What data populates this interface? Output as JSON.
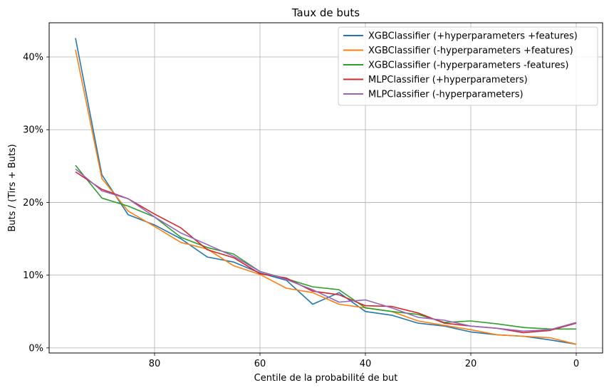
{
  "chart_data": {
    "type": "line",
    "title": "Taux de buts",
    "xlabel": "Centile de la probabilité de but",
    "ylabel": "Buts / (Tirs + Buts)",
    "xlim": [
      100,
      -5
    ],
    "ylim": [
      -0.7,
      44.7
    ],
    "x_ticks": [
      80,
      60,
      40,
      20,
      0
    ],
    "x_tick_labels": [
      "80",
      "60",
      "40",
      "20",
      "0"
    ],
    "y_ticks": [
      0,
      10,
      20,
      30,
      40
    ],
    "y_tick_labels": [
      "0%",
      "10%",
      "20%",
      "30%",
      "40%"
    ],
    "grid": true,
    "legend_position": "top-right",
    "x": [
      95,
      90,
      85,
      80,
      75,
      70,
      65,
      60,
      55,
      50,
      45,
      40,
      35,
      30,
      25,
      20,
      15,
      10,
      5,
      0
    ],
    "series": [
      {
        "name": "XGBClassifier (+hyperparameters +features)",
        "color": "#1f77b4",
        "values": [
          42.6,
          23.8,
          18.3,
          16.9,
          15.0,
          12.5,
          11.8,
          10.3,
          9.3,
          6.0,
          7.6,
          5.0,
          4.5,
          3.4,
          3.0,
          2.2,
          1.8,
          1.6,
          1.1,
          0.5
        ]
      },
      {
        "name": "XGBClassifier (-hyperparameters +features)",
        "color": "#ff7f0e",
        "values": [
          41.0,
          23.3,
          18.8,
          16.7,
          14.5,
          13.6,
          11.3,
          10.1,
          8.2,
          7.6,
          6.0,
          5.5,
          5.0,
          3.7,
          3.1,
          2.5,
          1.8,
          1.6,
          1.4,
          0.5
        ]
      },
      {
        "name": "XGBClassifier (-hyperparameters -features)",
        "color": "#2ca02c",
        "values": [
          25.1,
          20.6,
          19.5,
          18.0,
          15.2,
          13.8,
          12.9,
          10.5,
          9.5,
          8.4,
          8.0,
          5.5,
          5.0,
          4.6,
          3.5,
          3.7,
          3.3,
          2.8,
          2.6,
          2.6
        ]
      },
      {
        "name": "MLPClassifier (+hyperparameters)",
        "color": "#d62728",
        "values": [
          24.2,
          21.8,
          20.5,
          18.4,
          16.5,
          13.5,
          12.4,
          10.2,
          9.6,
          7.8,
          7.3,
          5.8,
          5.7,
          4.8,
          3.4,
          3.0,
          2.7,
          2.1,
          2.4,
          3.4
        ]
      },
      {
        "name": "MLPClassifier (-hyperparameters)",
        "color": "#9467bd",
        "values": [
          24.6,
          21.6,
          20.5,
          18.0,
          15.8,
          14.2,
          12.6,
          10.5,
          9.4,
          8.0,
          6.3,
          6.6,
          5.5,
          4.2,
          3.8,
          3.0,
          2.7,
          2.3,
          2.5,
          3.5
        ]
      }
    ]
  }
}
